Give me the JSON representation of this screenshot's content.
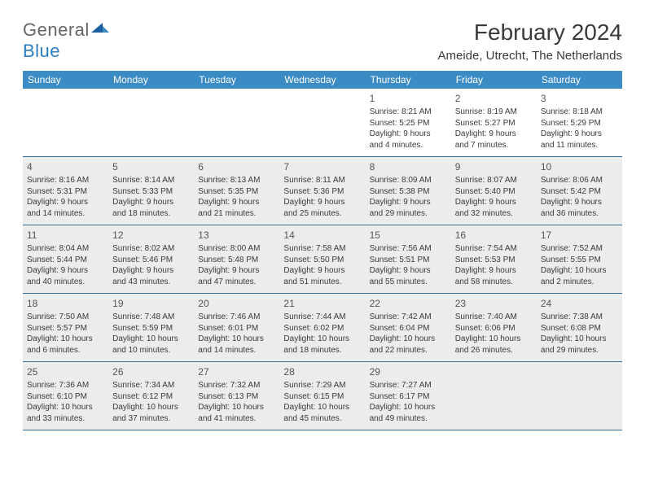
{
  "logo": {
    "word1": "General",
    "word2": "Blue"
  },
  "title": "February 2024",
  "location": "Ameide, Utrecht, The Netherlands",
  "colors": {
    "header_bar": "#3b8bc4",
    "row_border": "#3b6f95",
    "shaded_bg": "#ececec",
    "text": "#3a3a3a",
    "logo_grey": "#666666",
    "logo_blue": "#2b7cc0"
  },
  "weekdays": [
    "Sunday",
    "Monday",
    "Tuesday",
    "Wednesday",
    "Thursday",
    "Friday",
    "Saturday"
  ],
  "weeks": [
    {
      "shaded": false,
      "days": [
        null,
        null,
        null,
        null,
        {
          "n": "1",
          "sunrise": "8:21 AM",
          "sunset": "5:25 PM",
          "dl1": "Daylight: 9 hours",
          "dl2": "and 4 minutes."
        },
        {
          "n": "2",
          "sunrise": "8:19 AM",
          "sunset": "5:27 PM",
          "dl1": "Daylight: 9 hours",
          "dl2": "and 7 minutes."
        },
        {
          "n": "3",
          "sunrise": "8:18 AM",
          "sunset": "5:29 PM",
          "dl1": "Daylight: 9 hours",
          "dl2": "and 11 minutes."
        }
      ]
    },
    {
      "shaded": true,
      "days": [
        {
          "n": "4",
          "sunrise": "8:16 AM",
          "sunset": "5:31 PM",
          "dl1": "Daylight: 9 hours",
          "dl2": "and 14 minutes."
        },
        {
          "n": "5",
          "sunrise": "8:14 AM",
          "sunset": "5:33 PM",
          "dl1": "Daylight: 9 hours",
          "dl2": "and 18 minutes."
        },
        {
          "n": "6",
          "sunrise": "8:13 AM",
          "sunset": "5:35 PM",
          "dl1": "Daylight: 9 hours",
          "dl2": "and 21 minutes."
        },
        {
          "n": "7",
          "sunrise": "8:11 AM",
          "sunset": "5:36 PM",
          "dl1": "Daylight: 9 hours",
          "dl2": "and 25 minutes."
        },
        {
          "n": "8",
          "sunrise": "8:09 AM",
          "sunset": "5:38 PM",
          "dl1": "Daylight: 9 hours",
          "dl2": "and 29 minutes."
        },
        {
          "n": "9",
          "sunrise": "8:07 AM",
          "sunset": "5:40 PM",
          "dl1": "Daylight: 9 hours",
          "dl2": "and 32 minutes."
        },
        {
          "n": "10",
          "sunrise": "8:06 AM",
          "sunset": "5:42 PM",
          "dl1": "Daylight: 9 hours",
          "dl2": "and 36 minutes."
        }
      ]
    },
    {
      "shaded": true,
      "days": [
        {
          "n": "11",
          "sunrise": "8:04 AM",
          "sunset": "5:44 PM",
          "dl1": "Daylight: 9 hours",
          "dl2": "and 40 minutes."
        },
        {
          "n": "12",
          "sunrise": "8:02 AM",
          "sunset": "5:46 PM",
          "dl1": "Daylight: 9 hours",
          "dl2": "and 43 minutes."
        },
        {
          "n": "13",
          "sunrise": "8:00 AM",
          "sunset": "5:48 PM",
          "dl1": "Daylight: 9 hours",
          "dl2": "and 47 minutes."
        },
        {
          "n": "14",
          "sunrise": "7:58 AM",
          "sunset": "5:50 PM",
          "dl1": "Daylight: 9 hours",
          "dl2": "and 51 minutes."
        },
        {
          "n": "15",
          "sunrise": "7:56 AM",
          "sunset": "5:51 PM",
          "dl1": "Daylight: 9 hours",
          "dl2": "and 55 minutes."
        },
        {
          "n": "16",
          "sunrise": "7:54 AM",
          "sunset": "5:53 PM",
          "dl1": "Daylight: 9 hours",
          "dl2": "and 58 minutes."
        },
        {
          "n": "17",
          "sunrise": "7:52 AM",
          "sunset": "5:55 PM",
          "dl1": "Daylight: 10 hours",
          "dl2": "and 2 minutes."
        }
      ]
    },
    {
      "shaded": true,
      "days": [
        {
          "n": "18",
          "sunrise": "7:50 AM",
          "sunset": "5:57 PM",
          "dl1": "Daylight: 10 hours",
          "dl2": "and 6 minutes."
        },
        {
          "n": "19",
          "sunrise": "7:48 AM",
          "sunset": "5:59 PM",
          "dl1": "Daylight: 10 hours",
          "dl2": "and 10 minutes."
        },
        {
          "n": "20",
          "sunrise": "7:46 AM",
          "sunset": "6:01 PM",
          "dl1": "Daylight: 10 hours",
          "dl2": "and 14 minutes."
        },
        {
          "n": "21",
          "sunrise": "7:44 AM",
          "sunset": "6:02 PM",
          "dl1": "Daylight: 10 hours",
          "dl2": "and 18 minutes."
        },
        {
          "n": "22",
          "sunrise": "7:42 AM",
          "sunset": "6:04 PM",
          "dl1": "Daylight: 10 hours",
          "dl2": "and 22 minutes."
        },
        {
          "n": "23",
          "sunrise": "7:40 AM",
          "sunset": "6:06 PM",
          "dl1": "Daylight: 10 hours",
          "dl2": "and 26 minutes."
        },
        {
          "n": "24",
          "sunrise": "7:38 AM",
          "sunset": "6:08 PM",
          "dl1": "Daylight: 10 hours",
          "dl2": "and 29 minutes."
        }
      ]
    },
    {
      "shaded": true,
      "days": [
        {
          "n": "25",
          "sunrise": "7:36 AM",
          "sunset": "6:10 PM",
          "dl1": "Daylight: 10 hours",
          "dl2": "and 33 minutes."
        },
        {
          "n": "26",
          "sunrise": "7:34 AM",
          "sunset": "6:12 PM",
          "dl1": "Daylight: 10 hours",
          "dl2": "and 37 minutes."
        },
        {
          "n": "27",
          "sunrise": "7:32 AM",
          "sunset": "6:13 PM",
          "dl1": "Daylight: 10 hours",
          "dl2": "and 41 minutes."
        },
        {
          "n": "28",
          "sunrise": "7:29 AM",
          "sunset": "6:15 PM",
          "dl1": "Daylight: 10 hours",
          "dl2": "and 45 minutes."
        },
        {
          "n": "29",
          "sunrise": "7:27 AM",
          "sunset": "6:17 PM",
          "dl1": "Daylight: 10 hours",
          "dl2": "and 49 minutes."
        },
        null,
        null
      ]
    }
  ],
  "labels": {
    "sunrise_prefix": "Sunrise: ",
    "sunset_prefix": "Sunset: "
  }
}
